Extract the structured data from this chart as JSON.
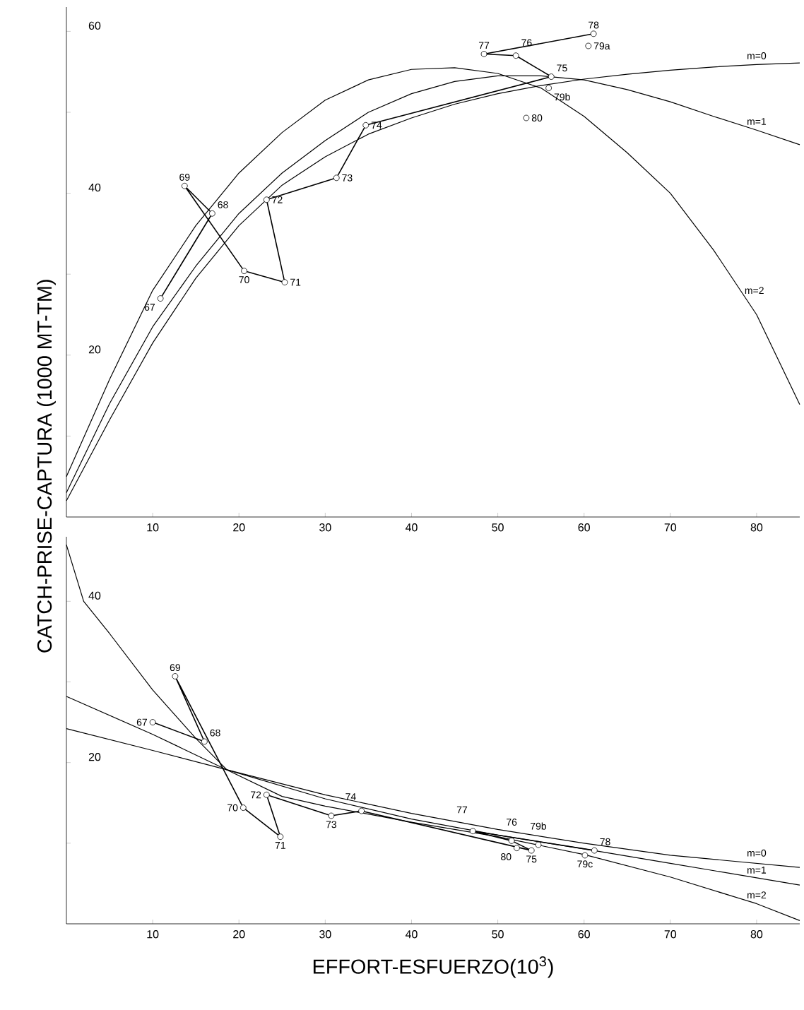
{
  "chart_data": [
    {
      "type": "line",
      "ylabel": "CATCH-PRISE-CAPTURA (1000 MT-TM)",
      "xlim": [
        0,
        85
      ],
      "ylim": [
        0,
        63
      ],
      "xticks": [
        10,
        20,
        30,
        40,
        50,
        60,
        70,
        80
      ],
      "yticks": [
        {
          "value": 10,
          "label": null
        },
        20,
        {
          "value": 30,
          "label": null
        },
        40,
        {
          "value": 50,
          "label": null
        },
        60
      ],
      "series": [
        {
          "color": "#000000",
          "marker": "circle",
          "x": [
            10.9,
            16.9,
            13.7,
            20.6,
            25.3,
            23.2,
            31.3,
            34.7,
            56.2,
            52.1,
            48.4,
            61.1
          ],
          "values": [
            27.0,
            37.5,
            40.9,
            30.4,
            29.0,
            39.2,
            41.9,
            48.4,
            54.4,
            57.0,
            57.2,
            59.7
          ]
        },
        {
          "type": "scatter",
          "color": "#000000",
          "marker": "circle",
          "x": [
            60.5,
            55.9,
            53.3
          ],
          "values": [
            58.2,
            53.0,
            49.3
          ]
        },
        {
          "color": "#000000",
          "x": [
            0,
            5,
            10,
            15,
            20,
            25,
            30,
            35,
            40,
            45,
            50,
            55,
            60,
            65,
            70,
            75,
            80,
            85
          ],
          "values": [
            2,
            12,
            21.5,
            29.5,
            36,
            41,
            44.5,
            47.3,
            49.3,
            51,
            52.3,
            53.3,
            54.1,
            54.7,
            55.2,
            55.6,
            55.9,
            56.1
          ]
        },
        {
          "color": "#000000",
          "x": [
            0,
            5,
            10,
            15,
            20,
            25,
            30,
            35,
            40,
            45,
            50,
            55,
            60,
            65,
            70,
            75,
            80,
            85
          ],
          "values": [
            3,
            14,
            23.5,
            31,
            37.5,
            42.5,
            46.5,
            50,
            52.3,
            53.8,
            54.5,
            54.5,
            54,
            52.8,
            51.3,
            49.5,
            47.8,
            46
          ]
        },
        {
          "color": "#000000",
          "x": [
            0,
            5,
            10,
            15,
            20,
            25,
            30,
            35,
            40,
            45,
            50,
            55,
            60,
            65,
            70,
            75,
            80,
            85
          ],
          "values": [
            5,
            17,
            28,
            36,
            42.5,
            47.5,
            51.5,
            54,
            55.3,
            55.5,
            54.8,
            53,
            49.5,
            45,
            40,
            33,
            25,
            13.9
          ]
        }
      ],
      "annotations": [
        {
          "text": "67",
          "x": 10.9,
          "y": 27.0
        },
        {
          "text": "68",
          "x": 16.9,
          "y": 37.5
        },
        {
          "text": "69",
          "x": 13.7,
          "y": 40.9
        },
        {
          "text": "70",
          "x": 20.6,
          "y": 30.4
        },
        {
          "text": "71",
          "x": 25.3,
          "y": 29.0
        },
        {
          "text": "72",
          "x": 23.2,
          "y": 39.2
        },
        {
          "text": "73",
          "x": 31.3,
          "y": 41.9
        },
        {
          "text": "74",
          "x": 34.7,
          "y": 48.4
        },
        {
          "text": "75",
          "x": 56.2,
          "y": 54.4
        },
        {
          "text": "76",
          "x": 52.1,
          "y": 57.0
        },
        {
          "text": "77",
          "x": 48.4,
          "y": 57.2
        },
        {
          "text": "78",
          "x": 61.1,
          "y": 59.7
        },
        {
          "text": "79a",
          "x": 60.5,
          "y": 58.2
        },
        {
          "text": "79b",
          "x": 55.9,
          "y": 53.0
        },
        {
          "text": "80",
          "x": 53.3,
          "y": 49.3
        },
        {
          "text": "m=0",
          "x": 80,
          "y": 55.9
        },
        {
          "text": "m=1",
          "x": 80,
          "y": 47.8
        },
        {
          "text": "m=2",
          "x": 78,
          "y": 28
        }
      ]
    },
    {
      "type": "line",
      "xlabel": "EFFORT-ESFUERZO(10$^{3}$)",
      "xlim": [
        0,
        85
      ],
      "ylim": [
        0,
        48
      ],
      "xticks": [
        10,
        20,
        30,
        40,
        50,
        60,
        70,
        80
      ],
      "yticks": [
        {
          "value": 10,
          "label": null
        },
        20,
        {
          "value": 30,
          "label": null
        },
        40
      ],
      "series": [
        {
          "color": "#000000",
          "marker": "circle",
          "x": [
            10.0,
            16.0,
            12.6,
            20.5,
            24.8,
            23.2,
            30.7,
            34.2,
            53.9,
            51.6,
            47.1,
            61.2
          ],
          "values": [
            25.0,
            22.6,
            30.7,
            14.4,
            10.8,
            16.0,
            13.4,
            14.0,
            9.1,
            10.3,
            11.5,
            9.1
          ]
        },
        {
          "type": "scatter",
          "color": "#000000",
          "marker": "circle",
          "x": [
            54.7,
            60.1,
            52.2
          ],
          "values": [
            9.8,
            8.5,
            9.4
          ]
        },
        {
          "color": "#000000",
          "x": [
            0,
            10,
            18.6,
            30,
            40,
            50,
            60,
            70,
            85
          ],
          "values": [
            24.2,
            21.5,
            19.1,
            16,
            13.7,
            11.7,
            10,
            8.5,
            7.0
          ]
        },
        {
          "color": "#000000",
          "x": [
            0,
            10,
            18.6,
            30,
            40,
            50,
            60,
            70,
            85
          ],
          "values": [
            28.2,
            23.5,
            19.1,
            15.5,
            13.0,
            11.0,
            9.3,
            7.5,
            4.8
          ]
        },
        {
          "color": "#000000",
          "x": [
            0,
            2,
            5,
            10,
            15,
            18.6,
            25,
            30,
            40,
            50,
            60,
            70,
            80,
            85
          ],
          "values": [
            47,
            40,
            36,
            29,
            23,
            19.1,
            15.8,
            14.6,
            12.6,
            10.8,
            8.6,
            5.8,
            2.5,
            0.4
          ]
        }
      ],
      "annotations": [
        {
          "text": "67",
          "x": 10.0,
          "y": 25.0
        },
        {
          "text": "68",
          "x": 16.0,
          "y": 22.6
        },
        {
          "text": "69",
          "x": 12.6,
          "y": 30.7
        },
        {
          "text": "70",
          "x": 20.5,
          "y": 14.4
        },
        {
          "text": "71",
          "x": 24.8,
          "y": 10.8
        },
        {
          "text": "72",
          "x": 23.2,
          "y": 16.0
        },
        {
          "text": "73",
          "x": 30.7,
          "y": 13.4
        },
        {
          "text": "74",
          "x": 34.2,
          "y": 14.0
        },
        {
          "text": "75",
          "x": 53.9,
          "y": 9.1
        },
        {
          "text": "76",
          "x": 51.6,
          "y": 10.3
        },
        {
          "text": "77",
          "x": 47.1,
          "y": 11.5
        },
        {
          "text": "78",
          "x": 61.2,
          "y": 9.1
        },
        {
          "text": "79b",
          "x": 54.7,
          "y": 9.8
        },
        {
          "text": "79c",
          "x": 60.1,
          "y": 8.5
        },
        {
          "text": "80",
          "x": 52.2,
          "y": 9.4
        },
        {
          "text": "m=0",
          "x": 80,
          "y": 7.7
        },
        {
          "text": "m=1",
          "x": 80,
          "y": 5.6
        },
        {
          "text": "m=2",
          "x": 80,
          "y": 2.5
        }
      ]
    }
  ]
}
